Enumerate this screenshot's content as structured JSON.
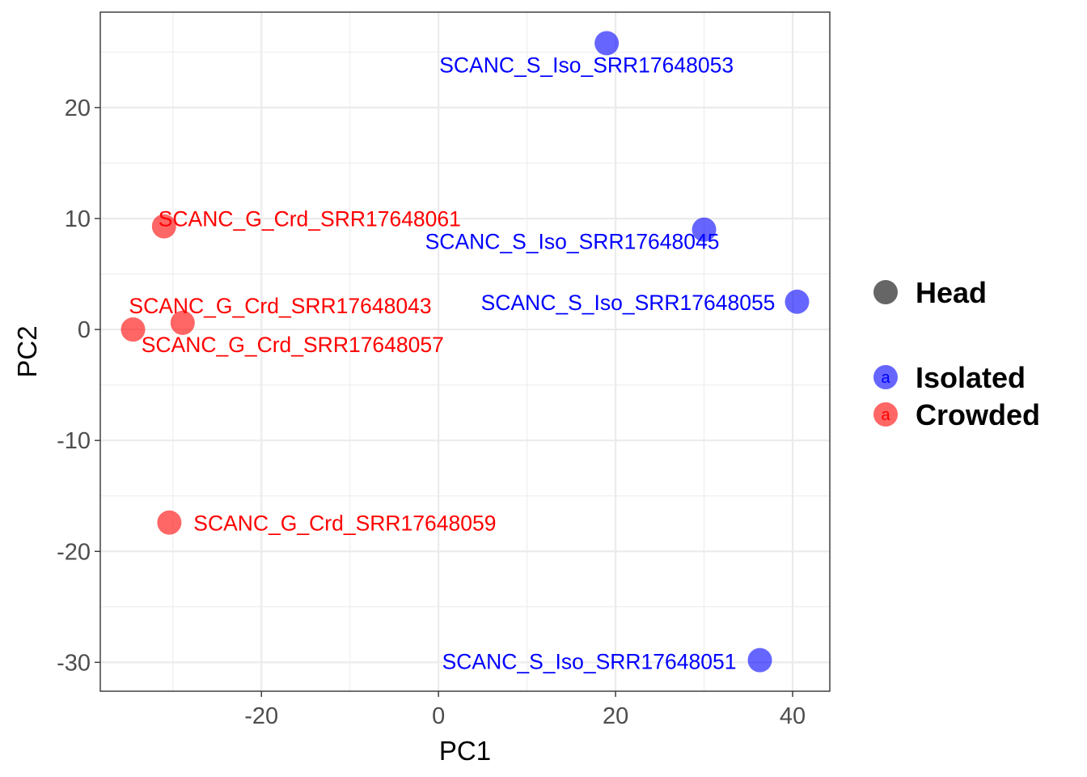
{
  "chart_data": {
    "type": "scatter",
    "title": "",
    "xlabel": "PC1",
    "ylabel": "PC2",
    "xlim": [
      -38.2,
      44.2
    ],
    "ylim": [
      -32.6,
      28.6
    ],
    "xticks": [
      -20,
      0,
      20,
      40
    ],
    "yticks": [
      -30,
      -20,
      -10,
      0,
      10,
      20
    ],
    "grid": true,
    "legend_position": "right",
    "legend": {
      "shape": [
        {
          "label": "Head"
        }
      ],
      "colour": [
        {
          "label": "Isolated",
          "color": "#0000ff",
          "glyph": "a"
        },
        {
          "label": "Crowded",
          "color": "#ff0000",
          "glyph": "a"
        }
      ]
    },
    "series": [
      {
        "name": "Isolated",
        "color": "#0000ff",
        "points": [
          {
            "x": 19.0,
            "y": 25.8,
            "label": "SCANC_S_Iso_SRR17648053"
          },
          {
            "x": 30.0,
            "y": 9.0,
            "label": "SCANC_S_Iso_SRR17648045"
          },
          {
            "x": 40.5,
            "y": 2.5,
            "label": "SCANC_S_Iso_SRR17648055"
          },
          {
            "x": 36.3,
            "y": -29.8,
            "label": "SCANC_S_Iso_SRR17648051"
          }
        ]
      },
      {
        "name": "Crowded",
        "color": "#ff0000",
        "points": [
          {
            "x": -31.0,
            "y": 9.3,
            "label": "SCANC_G_Crd_SRR17648061"
          },
          {
            "x": -34.5,
            "y": 0.0,
            "label": "SCANC_G_Crd_SRR17648043"
          },
          {
            "x": -28.9,
            "y": 0.6,
            "label": "SCANC_G_Crd_SRR17648057"
          },
          {
            "x": -30.4,
            "y": -17.4,
            "label": "SCANC_G_Crd_SRR17648059"
          }
        ]
      }
    ]
  }
}
